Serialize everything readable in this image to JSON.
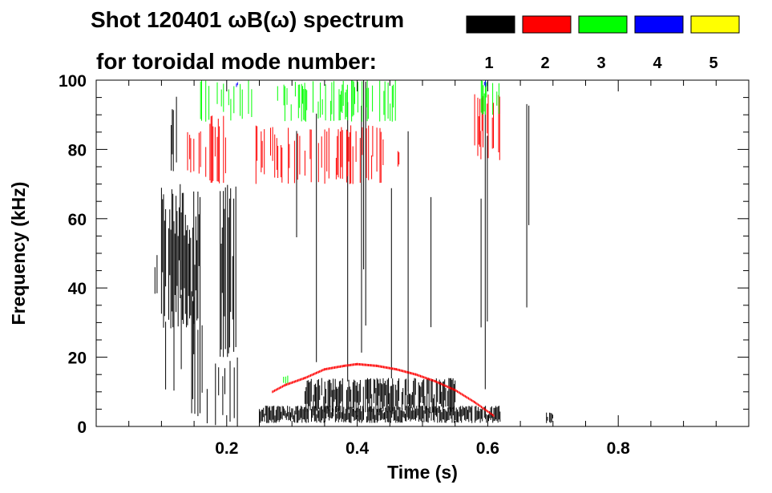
{
  "chart_data": {
    "type": "spectrogram",
    "title_line1": "Shot 120401 ωB(ω) spectrum",
    "title_line2": "for toroidal mode number:",
    "xlabel": "Time (s)",
    "ylabel": "Frequency (kHz)",
    "xlim": [
      0.0,
      1.0
    ],
    "ylim": [
      0,
      100
    ],
    "x_ticks": [
      {
        "value": 0.2,
        "label": "0.2"
      },
      {
        "value": 0.4,
        "label": "0.4"
      },
      {
        "value": 0.6,
        "label": "0.6"
      },
      {
        "value": 0.8,
        "label": "0.8"
      }
    ],
    "y_ticks": [
      {
        "value": 0,
        "label": "0"
      },
      {
        "value": 20,
        "label": "20"
      },
      {
        "value": 40,
        "label": "40"
      },
      {
        "value": 60,
        "label": "60"
      },
      {
        "value": 80,
        "label": "80"
      },
      {
        "value": 100,
        "label": "100"
      }
    ],
    "legend": [
      {
        "mode": "1",
        "color": "#000000"
      },
      {
        "mode": "2",
        "color": "#ff0000"
      },
      {
        "mode": "3",
        "color": "#00ff00"
      },
      {
        "mode": "4",
        "color": "#0000ff"
      },
      {
        "mode": "5",
        "color": "#ffff00"
      }
    ],
    "regions": [
      {
        "mode": "1",
        "color": "#000000",
        "t": [
          0.09,
          0.1
        ],
        "f": [
          36,
          50
        ],
        "density": 0.7
      },
      {
        "mode": "1",
        "color": "#000000",
        "t": [
          0.1,
          0.16
        ],
        "f": [
          28,
          70
        ],
        "density": 0.85
      },
      {
        "mode": "1",
        "color": "#000000",
        "t": [
          0.1,
          0.18
        ],
        "f": [
          2,
          40
        ],
        "density": 0.25
      },
      {
        "mode": "1",
        "color": "#000000",
        "t": [
          0.115,
          0.125
        ],
        "f": [
          70,
          100
        ],
        "density": 0.5
      },
      {
        "mode": "1",
        "color": "#000000",
        "t": [
          0.19,
          0.215
        ],
        "f": [
          20,
          70
        ],
        "density": 0.75
      },
      {
        "mode": "1",
        "color": "#000000",
        "t": [
          0.17,
          0.22
        ],
        "f": [
          0,
          20
        ],
        "density": 0.2
      },
      {
        "mode": "1",
        "color": "#000000",
        "t": [
          0.25,
          0.62
        ],
        "f": [
          1,
          6
        ],
        "density": 0.95
      },
      {
        "mode": "1",
        "color": "#000000",
        "t": [
          0.32,
          0.55
        ],
        "f": [
          4,
          14
        ],
        "density": 0.85
      },
      {
        "mode": "1",
        "color": "#000000",
        "t": [
          0.405,
          0.415
        ],
        "f": [
          18,
          100
        ],
        "density": 0.4
      },
      {
        "mode": "1",
        "color": "#000000",
        "t": [
          0.455,
          0.465
        ],
        "f": [
          15,
          100
        ],
        "density": 0.35
      },
      {
        "mode": "1",
        "color": "#000000",
        "t": [
          0.505,
          0.515
        ],
        "f": [
          14,
          100
        ],
        "density": 0.35
      },
      {
        "mode": "1",
        "color": "#000000",
        "t": [
          0.535,
          0.545
        ],
        "f": [
          10,
          100
        ],
        "density": 0.3
      },
      {
        "mode": "1",
        "color": "#000000",
        "t": [
          0.655,
          0.665
        ],
        "f": [
          32,
          100
        ],
        "density": 0.7
      },
      {
        "mode": "1",
        "color": "#000000",
        "t": [
          0.69,
          0.7
        ],
        "f": [
          1,
          4
        ],
        "density": 0.8
      },
      {
        "mode": "1",
        "color": "#000000",
        "t": [
          0.24,
          0.6
        ],
        "f": [
          10,
          95
        ],
        "density": 0.02
      },
      {
        "mode": "2",
        "color": "#ff0000",
        "t": [
          0.14,
          0.16
        ],
        "f": [
          73,
          85
        ],
        "density": 0.5
      },
      {
        "mode": "2",
        "color": "#ff0000",
        "t": [
          0.16,
          0.2
        ],
        "f": [
          70,
          90
        ],
        "density": 0.3
      },
      {
        "mode": "2",
        "color": "#ff0000",
        "t": [
          0.24,
          0.44
        ],
        "f": [
          70,
          87
        ],
        "density": 0.4
      },
      {
        "mode": "2",
        "color": "#ff0000",
        "t": [
          0.44,
          0.47
        ],
        "f": [
          75,
          80
        ],
        "density": 0.35
      },
      {
        "mode": "2",
        "color": "#ff0000",
        "t": [
          0.58,
          0.62
        ],
        "f": [
          76,
          96
        ],
        "density": 0.45
      },
      {
        "mode": "3",
        "color": "#00ff00",
        "t": [
          0.16,
          0.24
        ],
        "f": [
          88,
          100
        ],
        "density": 0.35
      },
      {
        "mode": "3",
        "color": "#00ff00",
        "t": [
          0.27,
          0.46
        ],
        "f": [
          88,
          100
        ],
        "density": 0.4
      },
      {
        "mode": "3",
        "color": "#00ff00",
        "t": [
          0.59,
          0.62
        ],
        "f": [
          90,
          100
        ],
        "density": 0.35
      },
      {
        "mode": "3",
        "color": "#00ff00",
        "t": [
          0.26,
          0.3
        ],
        "f": [
          12,
          15
        ],
        "density": 0.15
      },
      {
        "mode": "4",
        "color": "#0000ff",
        "t": [
          0.215,
          0.22
        ],
        "f": [
          98,
          100
        ],
        "density": 0.8
      },
      {
        "mode": "4",
        "color": "#0000ff",
        "t": [
          0.595,
          0.6
        ],
        "f": [
          98,
          100
        ],
        "density": 0.8
      }
    ],
    "mode2_chirp": {
      "mode": "2",
      "color": "#ff0000",
      "t": [
        0.27,
        0.29,
        0.32,
        0.35,
        0.38,
        0.4,
        0.43,
        0.46,
        0.49,
        0.52,
        0.55,
        0.58,
        0.61
      ],
      "f": [
        10,
        12,
        14,
        16.5,
        17.5,
        18,
        17.5,
        16.5,
        15,
        13,
        10.5,
        7,
        3
      ]
    }
  }
}
